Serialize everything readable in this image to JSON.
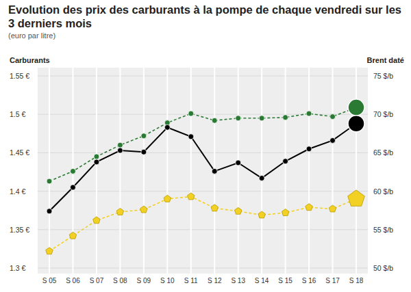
{
  "chart_data": {
    "type": "line",
    "title": "Evolution des prix des carburants à la pompe de chaque vendredi sur les 3 derniers mois",
    "subtitle": "(euro par litre)",
    "y_label": "Carburants",
    "y2_label": "Brent daté",
    "categories": [
      "S 05",
      "S 06",
      "S 07",
      "S 08",
      "S 09",
      "S 10",
      "S 11",
      "S 12",
      "S 13",
      "S 14",
      "S 15",
      "S 16",
      "S 17",
      "S 18"
    ],
    "ylim": [
      1.3,
      1.55
    ],
    "yticks": [
      {
        "value": 1.3,
        "label": "1.3 €"
      },
      {
        "value": 1.35,
        "label": "1.35 €"
      },
      {
        "value": 1.4,
        "label": "1.4 €"
      },
      {
        "value": 1.45,
        "label": "1.45 €"
      },
      {
        "value": 1.5,
        "label": "1.5 €"
      },
      {
        "value": 1.55,
        "label": "1.55 €"
      }
    ],
    "y2lim": [
      50,
      75
    ],
    "y2ticks": [
      {
        "value": 50,
        "label": "50 $/b"
      },
      {
        "value": 55,
        "label": "55 $/b"
      },
      {
        "value": 60,
        "label": "60 $/b"
      },
      {
        "value": 65,
        "label": "65 $/b"
      },
      {
        "value": 70,
        "label": "70 $/b"
      },
      {
        "value": 75,
        "label": "75 $/b"
      }
    ],
    "grid": true,
    "series": [
      {
        "color": "#2b7a34",
        "line_style": "dashed",
        "marker": "circle",
        "values": [
          1.413,
          1.426,
          1.445,
          1.46,
          1.472,
          1.489,
          1.501,
          1.492,
          1.495,
          1.495,
          1.496,
          1.501,
          1.497,
          1.509
        ]
      },
      {
        "color": "#000000",
        "line_style": "solid",
        "marker": "circle",
        "axis": "y2",
        "values": [
          57.4,
          60.5,
          63.8,
          65.3,
          65.1,
          68.3,
          67.1,
          62.6,
          63.7,
          61.7,
          63.9,
          65.5,
          66.6,
          68.8
        ]
      },
      {
        "color": "#f2d024",
        "line_style": "dashed",
        "marker": "pentagon",
        "values": [
          1.322,
          1.342,
          1.362,
          1.373,
          1.376,
          1.39,
          1.393,
          1.378,
          1.374,
          1.369,
          1.372,
          1.379,
          1.377,
          1.39
        ]
      }
    ]
  }
}
